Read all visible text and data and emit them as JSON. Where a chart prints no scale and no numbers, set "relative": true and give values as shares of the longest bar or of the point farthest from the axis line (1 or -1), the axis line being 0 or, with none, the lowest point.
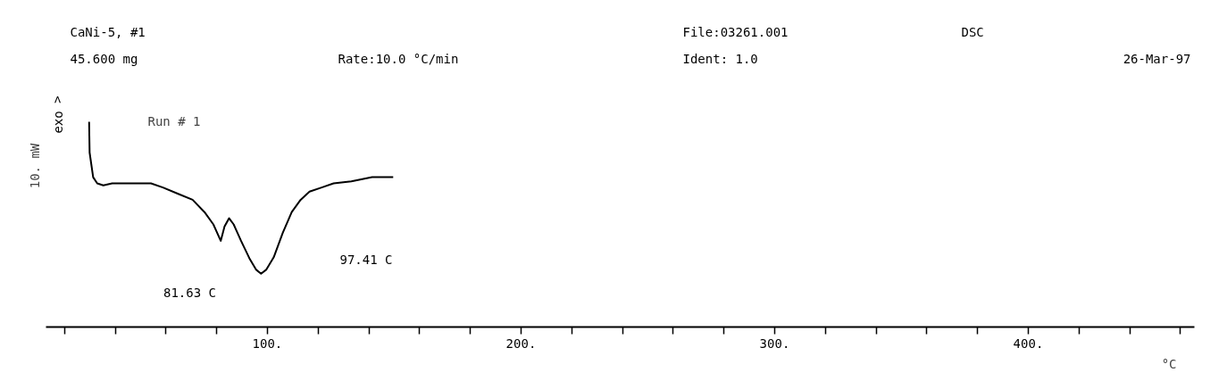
{
  "chart_data": {
    "type": "line",
    "title": "CaNi-5, #1",
    "relative": true,
    "ylabel": "10. mW",
    "xlabel": "°C",
    "xlim": [
      12.7,
      465.5
    ],
    "xticks": [
      {
        "value": 20,
        "label": null
      },
      {
        "value": 40,
        "label": null
      },
      {
        "value": 60,
        "label": null
      },
      {
        "value": 80,
        "label": null
      },
      {
        "value": 100,
        "label": "100."
      },
      {
        "value": 120,
        "label": null
      },
      {
        "value": 140,
        "label": null
      },
      {
        "value": 160,
        "label": null
      },
      {
        "value": 180,
        "label": null
      },
      {
        "value": 200,
        "label": "200."
      },
      {
        "value": 220,
        "label": null
      },
      {
        "value": 240,
        "label": null
      },
      {
        "value": 260,
        "label": null
      },
      {
        "value": 280,
        "label": null
      },
      {
        "value": 300,
        "label": "300."
      },
      {
        "value": 320,
        "label": null
      },
      {
        "value": 340,
        "label": null
      },
      {
        "value": 360,
        "label": null
      },
      {
        "value": 380,
        "label": null
      },
      {
        "value": 400,
        "label": "400."
      },
      {
        "value": 420,
        "label": null
      },
      {
        "value": 440,
        "label": null
      },
      {
        "value": 460,
        "label": null
      }
    ],
    "grid": false,
    "marker": "none",
    "line_style": "solid",
    "series": [
      {
        "name": "Run # 1",
        "color": "#000000",
        "x": [
          29.7,
          29.9,
          31.3,
          32.9,
          35.3,
          38.8,
          47.0,
          54.1,
          58.8,
          64.6,
          70.5,
          75.2,
          78.7,
          81.6,
          83.1,
          84.9,
          86.7,
          89.6,
          93.1,
          95.5,
          97.5,
          99.6,
          102.5,
          106.1,
          109.6,
          113.1,
          116.6,
          121.4,
          126.1,
          133.1,
          141.3,
          149.6
        ],
        "values": [
          1.0,
          0.85,
          0.73,
          0.7,
          0.69,
          0.7,
          0.7,
          0.7,
          0.68,
          0.65,
          0.62,
          0.56,
          0.5,
          0.42,
          0.49,
          0.53,
          0.5,
          0.42,
          0.33,
          0.28,
          0.26,
          0.28,
          0.34,
          0.46,
          0.56,
          0.62,
          0.66,
          0.68,
          0.7,
          0.71,
          0.73,
          0.73
        ]
      }
    ],
    "annotations": [
      "45.600 mg",
      "Rate:10.0 °C/min",
      "File:03261.001",
      "DSC",
      "Ident: 1.0",
      "26-Mar-97",
      "exo >",
      "81.63 C",
      "97.41 C"
    ]
  }
}
